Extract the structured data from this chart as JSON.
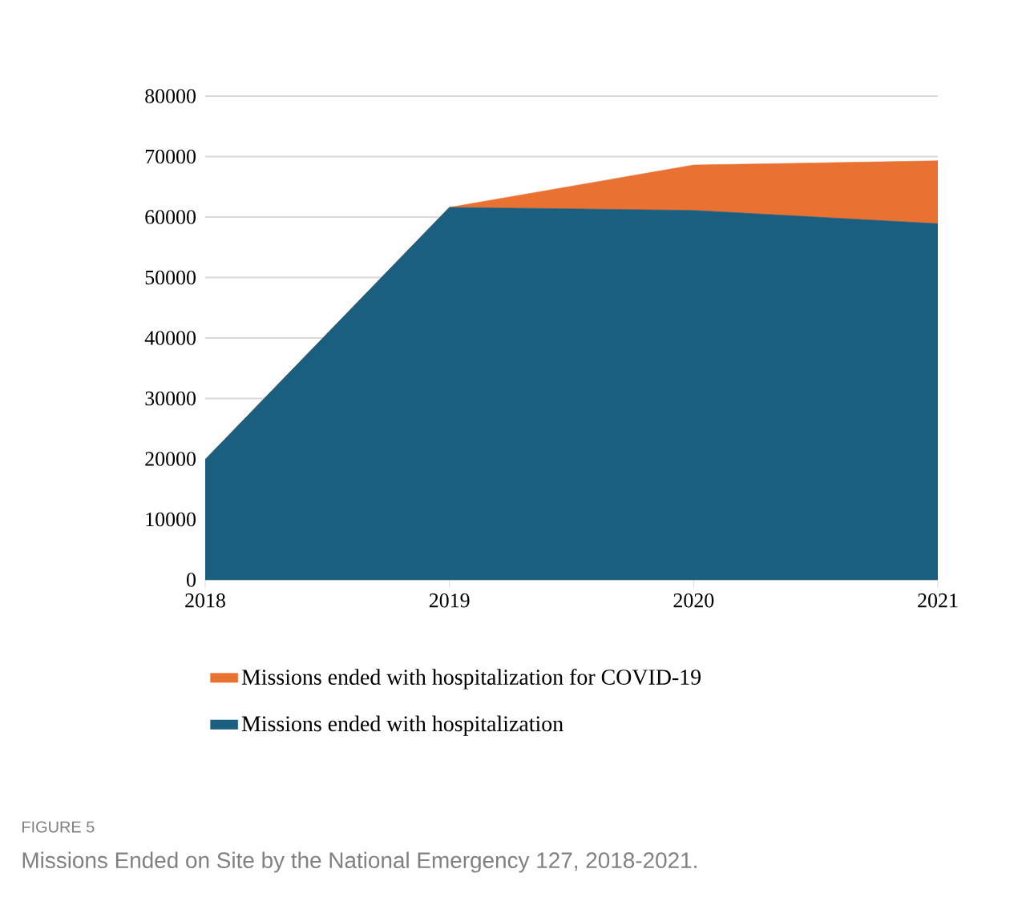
{
  "chart_data": {
    "type": "area",
    "stacked": true,
    "title": "Missions Ended on Site by the National Emergency 127, 2018-2021.",
    "annotations": [
      "FIGURE 5"
    ],
    "categories": [
      "2018",
      "2019",
      "2020",
      "2021"
    ],
    "series": [
      {
        "name": "Missions ended with hospitalization",
        "color": "#1a5f80",
        "values": [
          19900,
          61600,
          61100,
          58900
        ]
      },
      {
        "name": "Missions ended with hospitalization for COVID-19",
        "color": "#e97132",
        "values": [
          0,
          0,
          7500,
          10400
        ]
      }
    ],
    "ylim": [
      0,
      80000
    ],
    "yticks": [
      0,
      10000,
      20000,
      30000,
      40000,
      50000,
      60000,
      70000,
      80000
    ],
    "grid": "y",
    "legend": "bottom"
  }
}
